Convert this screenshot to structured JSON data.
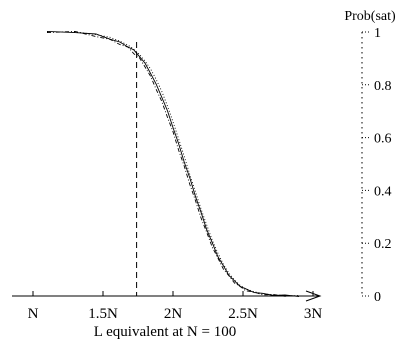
{
  "chart_data": {
    "type": "line",
    "xlabel": "L equivalent at N = 100",
    "ylabel": "Prob(sat)",
    "xlim": [
      0.8,
      3.1
    ],
    "ylim": [
      0,
      1
    ],
    "x_ticks": [
      {
        "value": 1.0,
        "label": "N"
      },
      {
        "value": 1.5,
        "label": "1.5N"
      },
      {
        "value": 2.0,
        "label": "2N"
      },
      {
        "value": 2.5,
        "label": "2.5N"
      },
      {
        "value": 3.0,
        "label": "3N"
      }
    ],
    "y_ticks": [
      {
        "value": 0,
        "label": "0"
      },
      {
        "value": 0.2,
        "label": "0.2"
      },
      {
        "value": 0.4,
        "label": "0.4"
      },
      {
        "value": 0.6,
        "label": "0.6"
      },
      {
        "value": 0.8,
        "label": "0.8"
      },
      {
        "value": 1,
        "label": "1"
      }
    ],
    "y_axis_side": "right",
    "grid": false,
    "vertical_line": {
      "x": 1.74,
      "style": "dashed"
    },
    "series": [
      {
        "style": "solid",
        "x": [
          1.1,
          1.3,
          1.45,
          1.55,
          1.62,
          1.68,
          1.72,
          1.76,
          1.8,
          1.84,
          1.88,
          1.92,
          1.96,
          2.0,
          2.04,
          2.08,
          2.12,
          2.16,
          2.2,
          2.24,
          2.28,
          2.32,
          2.36,
          2.4,
          2.44,
          2.48,
          2.52,
          2.58,
          2.64,
          2.72,
          2.8,
          2.9
        ],
        "y": [
          1.0,
          1.0,
          0.99,
          0.975,
          0.96,
          0.945,
          0.93,
          0.91,
          0.88,
          0.845,
          0.8,
          0.755,
          0.7,
          0.64,
          0.575,
          0.51,
          0.445,
          0.38,
          0.315,
          0.255,
          0.2,
          0.152,
          0.112,
          0.08,
          0.055,
          0.038,
          0.025,
          0.015,
          0.008,
          0.004,
          0.002,
          0.0
        ]
      },
      {
        "style": "dotted",
        "x": [
          1.1,
          1.3,
          1.45,
          1.55,
          1.62,
          1.68,
          1.72,
          1.76,
          1.8,
          1.84,
          1.88,
          1.92,
          1.96,
          2.0,
          2.04,
          2.08,
          2.12,
          2.16,
          2.2,
          2.24,
          2.28,
          2.32,
          2.36,
          2.4,
          2.44,
          2.48,
          2.52,
          2.58,
          2.64,
          2.72,
          2.8,
          2.9
        ],
        "y": [
          1.0,
          1.0,
          0.99,
          0.98,
          0.965,
          0.95,
          0.935,
          0.915,
          0.89,
          0.86,
          0.82,
          0.775,
          0.72,
          0.66,
          0.595,
          0.53,
          0.46,
          0.395,
          0.33,
          0.27,
          0.212,
          0.163,
          0.12,
          0.086,
          0.06,
          0.04,
          0.027,
          0.016,
          0.009,
          0.004,
          0.002,
          0.0
        ]
      },
      {
        "style": "dashdot",
        "x": [
          1.1,
          1.3,
          1.45,
          1.55,
          1.62,
          1.68,
          1.72,
          1.76,
          1.8,
          1.84,
          1.88,
          1.92,
          1.96,
          2.0,
          2.04,
          2.08,
          2.12,
          2.16,
          2.2,
          2.24,
          2.28,
          2.32,
          2.36,
          2.4,
          2.44,
          2.48,
          2.52,
          2.58,
          2.64,
          2.72,
          2.8,
          2.9
        ],
        "y": [
          1.0,
          1.0,
          0.985,
          0.97,
          0.955,
          0.94,
          0.92,
          0.9,
          0.87,
          0.83,
          0.785,
          0.735,
          0.68,
          0.62,
          0.555,
          0.49,
          0.425,
          0.36,
          0.298,
          0.24,
          0.188,
          0.142,
          0.104,
          0.074,
          0.051,
          0.034,
          0.022,
          0.013,
          0.007,
          0.003,
          0.001,
          0.0
        ]
      }
    ]
  }
}
